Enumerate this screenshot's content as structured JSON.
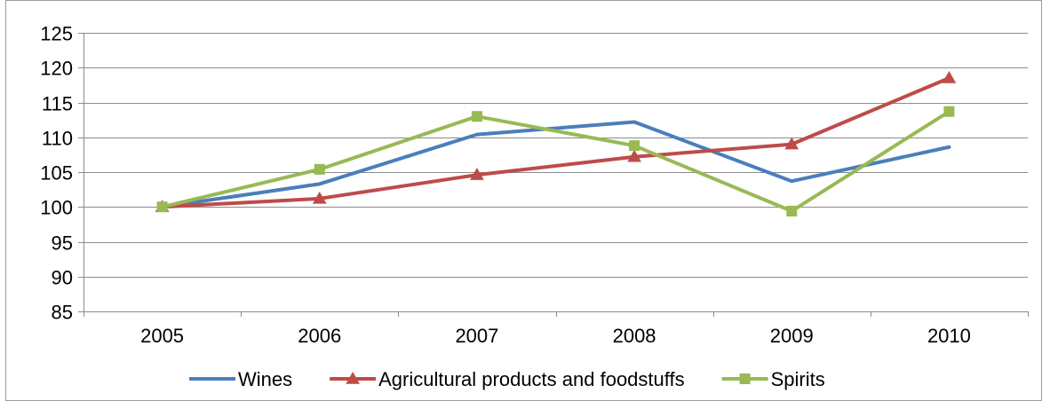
{
  "chart_data": {
    "type": "line",
    "title": "",
    "xlabel": "",
    "ylabel": "",
    "categories": [
      "2005",
      "2006",
      "2007",
      "2008",
      "2009",
      "2010"
    ],
    "ylim": [
      85,
      125
    ],
    "yticks": [
      85,
      90,
      95,
      100,
      105,
      110,
      115,
      120,
      125
    ],
    "grid": "horizontal",
    "legend_position": "bottom",
    "series": [
      {
        "name": "Wines",
        "color": "#4a7ebb",
        "marker": "none",
        "values": [
          100,
          103.3,
          110.4,
          112.2,
          103.7,
          108.6
        ]
      },
      {
        "name": "Agricultural products and foodstuffs",
        "color": "#be4b48",
        "marker": "triangle",
        "values": [
          100,
          101.2,
          104.6,
          107.2,
          109.0,
          118.5
        ]
      },
      {
        "name": "Spirits",
        "color": "#98b954",
        "marker": "square",
        "values": [
          100,
          105.4,
          113.0,
          108.8,
          99.4,
          113.7
        ]
      }
    ]
  }
}
